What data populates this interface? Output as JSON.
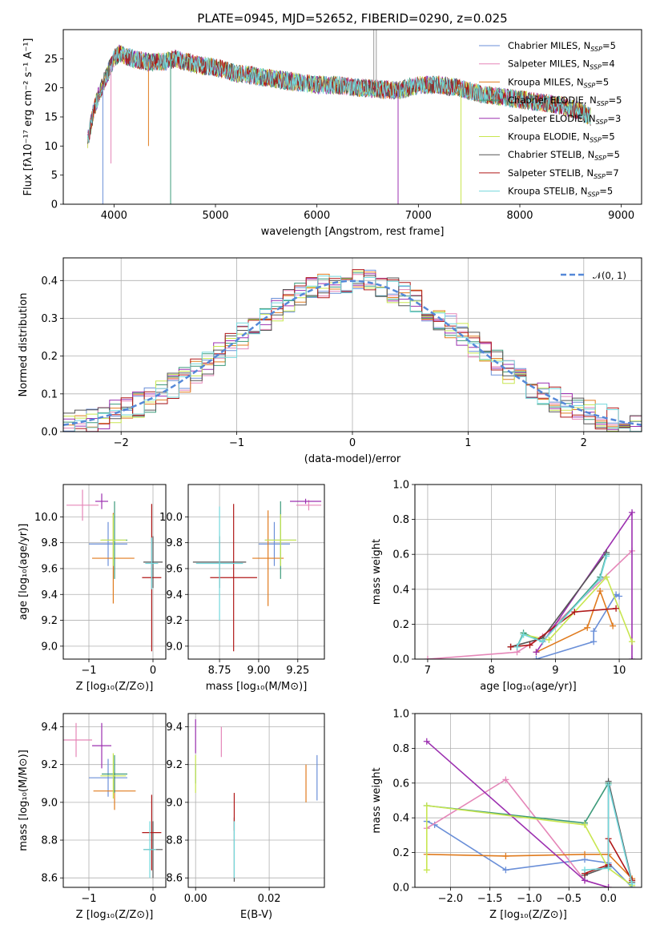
{
  "figure_title": "PLATE=0945, MJD=52652, FIBERID=0290, z=0.025",
  "colors": {
    "chabrier_miles": "#6a8fd8",
    "salpeter_miles": "#e586b8",
    "kroupa_miles": "#e07b1e",
    "chabrier_elodie": "#3c9a7a",
    "salpeter_elodie": "#9c30b0",
    "kroupa_elodie": "#c8e650",
    "chabrier_stelib": "#555555",
    "salpeter_stelib": "#b01818",
    "kroupa_stelib": "#74d8dc",
    "gauss": "#5588d8",
    "grid": "#b0b0b0"
  },
  "models": [
    {
      "key": "chabrier_miles",
      "label": "Chabrier MILES, N",
      "sub": "SSP",
      "suffix": "=5"
    },
    {
      "key": "salpeter_miles",
      "label": "Salpeter MILES, N",
      "sub": "SSP",
      "suffix": "=4"
    },
    {
      "key": "kroupa_miles",
      "label": "Kroupa MILES, N",
      "sub": "SSP",
      "suffix": "=5"
    },
    {
      "key": "chabrier_elodie",
      "label": "Chabrier ELODIE, N",
      "sub": "SSP",
      "suffix": "=5"
    },
    {
      "key": "salpeter_elodie",
      "label": "Salpeter ELODIE, N",
      "sub": "SSP",
      "suffix": "=3"
    },
    {
      "key": "kroupa_elodie",
      "label": "Kroupa ELODIE, N",
      "sub": "SSP",
      "suffix": "=5"
    },
    {
      "key": "chabrier_stelib",
      "label": "Chabrier STELIB, N",
      "sub": "SSP",
      "suffix": "=5"
    },
    {
      "key": "salpeter_stelib",
      "label": "Salpeter STELIB, N",
      "sub": "SSP",
      "suffix": "=7"
    },
    {
      "key": "kroupa_stelib",
      "label": "Kroupa STELIB, N",
      "sub": "SSP",
      "suffix": "=5"
    }
  ],
  "chart_data": [
    {
      "id": "spectrum",
      "type": "line",
      "xlabel": "wavelength [Angstrom, rest frame]",
      "ylabel": "Flux [fλ10⁻¹⁷ erg cm⁻² s⁻¹ A⁻¹]",
      "xlim": [
        3500,
        9200
      ],
      "ylim": [
        0,
        30
      ],
      "xticks": [
        4000,
        5000,
        6000,
        7000,
        8000,
        9000
      ],
      "yticks": [
        0,
        5,
        10,
        15,
        20,
        25
      ],
      "grid": false,
      "legend": "upper right",
      "spectrum_envelope": {
        "x": [
          3740,
          3800,
          3850,
          3900,
          3950,
          4000,
          4050,
          4100,
          4200,
          4300,
          4400,
          4500,
          4600,
          4800,
          5000,
          5200,
          5400,
          5600,
          5800,
          6000,
          6200,
          6400,
          6600,
          6800,
          7000,
          7200,
          7400,
          7600,
          7800,
          8000,
          8200,
          8400,
          8600,
          8700
        ],
        "y": [
          11,
          16,
          19,
          21,
          23,
          25,
          26,
          25.5,
          25,
          24.5,
          24.5,
          24.5,
          25,
          24,
          23.5,
          22.5,
          22,
          21.5,
          21,
          20.5,
          20.5,
          20,
          19.8,
          19.5,
          20.5,
          20.5,
          20,
          19,
          18.5,
          18,
          17.5,
          17,
          16,
          15
        ]
      },
      "spikes": [
        {
          "x": 3890,
          "y": 0
        },
        {
          "x": 3970,
          "y": 7
        },
        {
          "x": 4340,
          "y": 10
        },
        {
          "x": 4558,
          "y": 0
        },
        {
          "x": 6800,
          "y": 0
        },
        {
          "x": 7420,
          "y": 0
        }
      ]
    },
    {
      "id": "residuals",
      "type": "histogram",
      "xlabel": "(data-model)/error",
      "ylabel": "Normed distribution",
      "xlim": [
        -2.5,
        2.5
      ],
      "ylim": [
        0,
        0.46
      ],
      "xticks": [
        -2,
        -1,
        0,
        1,
        2
      ],
      "yticks": [
        0.0,
        0.1,
        0.2,
        0.3,
        0.4
      ],
      "grid": true,
      "legend": "upper right",
      "legend_label": "𝒩(0, 1)",
      "bin_width": 0.1,
      "reference": {
        "mean": 0,
        "sigma": 1
      }
    },
    {
      "id": "age_vs_Z",
      "type": "scatter",
      "xlabel": "Z [log₁₀(Z/Z⊙)]",
      "ylabel": "age  [log₁₀(age/yr)]",
      "xlim": [
        -1.4,
        0.2
      ],
      "ylim": [
        8.9,
        10.25
      ],
      "xticks": [
        -1,
        0
      ],
      "yticks": [
        9.0,
        9.2,
        9.4,
        9.6,
        9.8,
        10.0
      ],
      "grid": true,
      "points": [
        {
          "key": "chabrier_miles",
          "x": -0.7,
          "y": 9.79,
          "xerr": 0.3,
          "yerr": 0.17
        },
        {
          "key": "salpeter_miles",
          "x": -1.1,
          "y": 10.09,
          "xerr": 0.25,
          "yerr": 0.12
        },
        {
          "key": "kroupa_miles",
          "x": -0.62,
          "y": 9.68,
          "xerr": 0.33,
          "yerr": 0.35
        },
        {
          "key": "chabrier_elodie",
          "x": -0.6,
          "y": 9.82,
          "xerr": 0.2,
          "yerr": 0.3
        },
        {
          "key": "salpeter_elodie",
          "x": -0.8,
          "y": 10.12,
          "xerr": 0.1,
          "yerr": 0.06
        },
        {
          "key": "kroupa_elodie",
          "x": -0.62,
          "y": 9.82,
          "xerr": 0.2,
          "yerr": 0.2
        },
        {
          "key": "chabrier_stelib",
          "x": 0.0,
          "y": 9.65,
          "xerr": 0.15,
          "yerr": 0.2
        },
        {
          "key": "salpeter_stelib",
          "x": -0.02,
          "y": 9.53,
          "xerr": 0.15,
          "yerr": 0.57
        },
        {
          "key": "kroupa_stelib",
          "x": -0.02,
          "y": 9.64,
          "xerr": 0.1,
          "yerr": 0.2
        }
      ]
    },
    {
      "id": "age_vs_mass",
      "type": "scatter",
      "xlabel": "mass [log₁₀(M/M⊙)]",
      "ylabel": "",
      "xlim": [
        8.55,
        9.42
      ],
      "ylim": [
        8.9,
        10.25
      ],
      "xticks": [
        8.75,
        9.0,
        9.25
      ],
      "yticks": [
        9.0,
        9.2,
        9.4,
        9.6,
        9.8,
        10.0
      ],
      "grid": true,
      "points": [
        {
          "key": "chabrier_miles",
          "x": 9.1,
          "y": 9.79,
          "xerr": 0.1,
          "yerr": 0.17
        },
        {
          "key": "salpeter_miles",
          "x": 9.32,
          "y": 10.09,
          "xerr": 0.08,
          "yerr": 0.04
        },
        {
          "key": "kroupa_miles",
          "x": 9.06,
          "y": 9.68,
          "xerr": 0.1,
          "yerr": 0.37
        },
        {
          "key": "chabrier_elodie",
          "x": 9.14,
          "y": 9.82,
          "xerr": 0.1,
          "yerr": 0.3
        },
        {
          "key": "salpeter_elodie",
          "x": 9.3,
          "y": 10.12,
          "xerr": 0.1,
          "yerr": 0.02
        },
        {
          "key": "kroupa_elodie",
          "x": 9.14,
          "y": 9.82,
          "xerr": 0.1,
          "yerr": 0.2
        },
        {
          "key": "chabrier_stelib",
          "x": 8.75,
          "y": 9.65,
          "xerr": 0.17,
          "yerr": 0.2
        },
        {
          "key": "salpeter_stelib",
          "x": 8.84,
          "y": 9.53,
          "xerr": 0.15,
          "yerr": 0.57
        },
        {
          "key": "kroupa_stelib",
          "x": 8.75,
          "y": 9.64,
          "xerr": 0.15,
          "yerr": 0.44
        }
      ]
    },
    {
      "id": "weight_vs_age",
      "type": "line",
      "xlabel": "age  [log₁₀(age/yr)]",
      "ylabel": "mass weight",
      "xlim": [
        6.8,
        10.35
      ],
      "ylim": [
        0,
        1.0
      ],
      "xticks": [
        7,
        8,
        9,
        10
      ],
      "yticks": [
        0.0,
        0.2,
        0.4,
        0.6,
        0.8,
        1.0
      ],
      "grid": true,
      "series": [
        {
          "key": "chabrier_miles",
          "x": [
            8.7,
            9.6,
            9.6,
            9.95,
            10.0
          ],
          "y": [
            0.0,
            0.1,
            0.16,
            0.37,
            0.36
          ]
        },
        {
          "key": "salpeter_miles",
          "x": [
            7.0,
            8.4,
            8.8,
            10.2
          ],
          "y": [
            0.0,
            0.04,
            0.13,
            0.62
          ]
        },
        {
          "key": "kroupa_miles",
          "x": [
            8.7,
            9.5,
            9.7,
            9.9
          ],
          "y": [
            0.04,
            0.18,
            0.39,
            0.19
          ]
        },
        {
          "key": "chabrier_elodie",
          "x": [
            8.4,
            8.5,
            8.8,
            9.7,
            9.8
          ],
          "y": [
            0.07,
            0.15,
            0.1,
            0.47,
            0.6
          ]
        },
        {
          "key": "salpeter_elodie",
          "x": [
            8.7,
            10.2,
            10.2
          ],
          "y": [
            0.04,
            0.84,
            0.0
          ]
        },
        {
          "key": "kroupa_elodie",
          "x": [
            8.5,
            8.9,
            9.8,
            10.2
          ],
          "y": [
            0.14,
            0.11,
            0.47,
            0.1
          ]
        },
        {
          "key": "chabrier_stelib",
          "x": [
            8.3,
            8.8,
            9.8
          ],
          "y": [
            0.07,
            0.12,
            0.61
          ]
        },
        {
          "key": "salpeter_stelib",
          "x": [
            8.3,
            8.6,
            9.3,
            9.95
          ],
          "y": [
            0.07,
            0.08,
            0.27,
            0.29
          ]
        },
        {
          "key": "kroupa_stelib",
          "x": [
            8.4,
            8.5,
            8.8,
            9.7,
            9.8
          ],
          "y": [
            0.07,
            0.14,
            0.1,
            0.46,
            0.59
          ]
        }
      ]
    },
    {
      "id": "mass_vs_Z",
      "type": "scatter",
      "xlabel": "Z [log₁₀(Z/Z⊙)]",
      "ylabel": "mass [log₁₀(M/M⊙)]",
      "xlim": [
        -1.4,
        0.2
      ],
      "ylim": [
        8.55,
        9.47
      ],
      "xticks": [
        -1,
        0
      ],
      "yticks": [
        8.6,
        8.8,
        9.0,
        9.2,
        9.4
      ],
      "grid": true,
      "points": [
        {
          "key": "chabrier_miles",
          "x": -0.7,
          "y": 9.13,
          "xerr": 0.3,
          "yerr": 0.1
        },
        {
          "key": "salpeter_miles",
          "x": -1.2,
          "y": 9.33,
          "xerr": 0.25,
          "yerr": 0.09
        },
        {
          "key": "kroupa_miles",
          "x": -0.6,
          "y": 9.06,
          "xerr": 0.33,
          "yerr": 0.1
        },
        {
          "key": "chabrier_elodie",
          "x": -0.6,
          "y": 9.15,
          "xerr": 0.2,
          "yerr": 0.1
        },
        {
          "key": "salpeter_elodie",
          "x": -0.8,
          "y": 9.3,
          "xerr": 0.15,
          "yerr": 0.12
        },
        {
          "key": "kroupa_elodie",
          "x": -0.62,
          "y": 9.14,
          "xerr": 0.2,
          "yerr": 0.12
        },
        {
          "key": "chabrier_stelib",
          "x": 0.0,
          "y": 8.75,
          "xerr": 0.15,
          "yerr": 0.15
        },
        {
          "key": "salpeter_stelib",
          "x": -0.02,
          "y": 8.84,
          "xerr": 0.15,
          "yerr": 0.2
        },
        {
          "key": "kroupa_stelib",
          "x": -0.05,
          "y": 8.75,
          "xerr": 0.1,
          "yerr": 0.15
        }
      ]
    },
    {
      "id": "mass_vs_ebv",
      "type": "scatter",
      "xlabel": "E(B-V)",
      "ylabel": "",
      "xlim": [
        -0.002,
        0.035
      ],
      "ylim": [
        8.55,
        9.47
      ],
      "xticks": [
        0.0,
        0.02
      ],
      "yticks": [
        8.6,
        8.8,
        9.0,
        9.2,
        9.4
      ],
      "grid": true,
      "points": [
        {
          "key": "chabrier_miles",
          "x": 0.033,
          "y": 9.13,
          "xerr": 0,
          "yerr": 0.12
        },
        {
          "key": "salpeter_miles",
          "x": 0.007,
          "y": 9.32,
          "xerr": 0,
          "yerr": 0.08
        },
        {
          "key": "kroupa_miles",
          "x": 0.03,
          "y": 9.1,
          "xerr": 0,
          "yerr": 0.1
        },
        {
          "key": "chabrier_elodie",
          "x": 0.0,
          "y": 9.15,
          "xerr": 0,
          "yerr": 0.05
        },
        {
          "key": "salpeter_elodie",
          "x": 0.0,
          "y": 9.35,
          "xerr": 0,
          "yerr": 0.09
        },
        {
          "key": "kroupa_elodie",
          "x": 0.0,
          "y": 9.15,
          "xerr": 0,
          "yerr": 0.1
        },
        {
          "key": "chabrier_stelib",
          "x": 0.0105,
          "y": 8.75,
          "xerr": 0,
          "yerr": 0.17
        },
        {
          "key": "salpeter_stelib",
          "x": 0.0105,
          "y": 8.95,
          "xerr": 0,
          "yerr": 0.1
        },
        {
          "key": "kroupa_stelib",
          "x": 0.0105,
          "y": 8.75,
          "xerr": 0,
          "yerr": 0.15
        }
      ]
    },
    {
      "id": "weight_vs_Z",
      "type": "line",
      "xlabel": "Z [log₁₀(Z/Z⊙)]",
      "ylabel": "mass weight",
      "xlim": [
        -2.45,
        0.42
      ],
      "ylim": [
        0,
        1.0
      ],
      "xticks": [
        -2.0,
        -1.5,
        -1.0,
        -0.5,
        0.0
      ],
      "yticks": [
        0.0,
        0.2,
        0.4,
        0.6,
        0.8,
        1.0
      ],
      "grid": true,
      "series": [
        {
          "key": "chabrier_miles",
          "x": [
            -2.3,
            -2.2,
            -1.3,
            -0.3,
            0.0,
            0.3
          ],
          "y": [
            0.38,
            0.36,
            0.1,
            0.16,
            0.14,
            0.0
          ]
        },
        {
          "key": "salpeter_miles",
          "x": [
            -2.3,
            -1.3,
            -0.3,
            0.0
          ],
          "y": [
            0.34,
            0.62,
            0.04,
            0.0
          ]
        },
        {
          "key": "kroupa_miles",
          "x": [
            -2.3,
            -1.3,
            -0.3,
            0.0,
            0.3
          ],
          "y": [
            0.19,
            0.18,
            0.19,
            0.19,
            0.05
          ]
        },
        {
          "key": "chabrier_elodie",
          "x": [
            -2.3,
            -0.3,
            0.0
          ],
          "y": [
            0.47,
            0.37,
            0.6
          ]
        },
        {
          "key": "salpeter_elodie",
          "x": [
            -2.3,
            -0.3,
            0.0
          ],
          "y": [
            0.84,
            0.04,
            0.0
          ]
        },
        {
          "key": "kroupa_elodie",
          "x": [
            -2.3,
            -2.3,
            -0.3,
            0.0,
            0.3
          ],
          "y": [
            0.1,
            0.47,
            0.36,
            0.11,
            0.01
          ]
        },
        {
          "key": "chabrier_stelib",
          "x": [
            -0.3,
            0.0,
            0.0,
            0.3
          ],
          "y": [
            0.07,
            0.12,
            0.61,
            0.03
          ]
        },
        {
          "key": "salpeter_stelib",
          "x": [
            -0.3,
            0.0,
            0.0,
            0.3
          ],
          "y": [
            0.08,
            0.13,
            0.28,
            0.04
          ]
        },
        {
          "key": "kroupa_stelib",
          "x": [
            -0.3,
            0.0,
            0.0,
            0.3
          ],
          "y": [
            0.1,
            0.11,
            0.59,
            0.02
          ]
        }
      ]
    }
  ]
}
